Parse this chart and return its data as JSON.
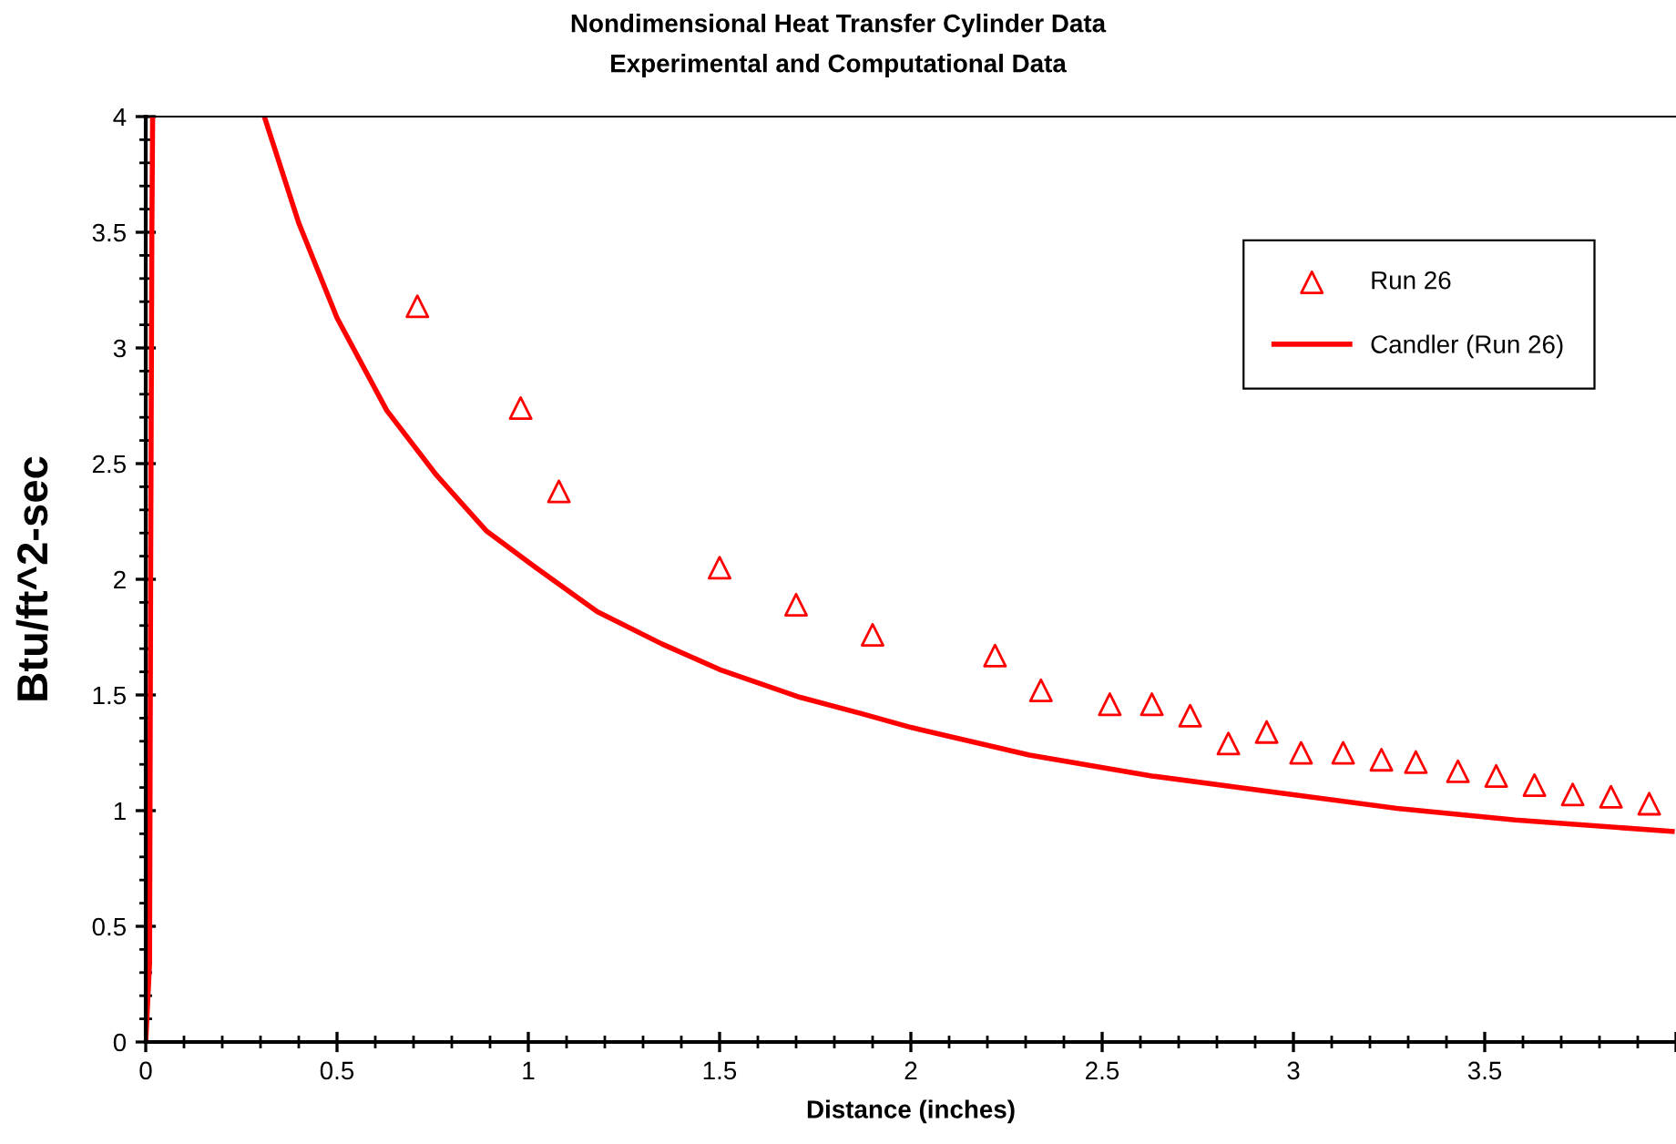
{
  "chart_data": {
    "type": "scatter",
    "title": "Nondimensional Heat Transfer Cylinder Data",
    "subtitle": "Experimental and Computational Data",
    "xlabel": "Distance (inches)",
    "ylabel": "Btu/ft^2-sec",
    "xlim": [
      0,
      4
    ],
    "ylim": [
      0,
      4
    ],
    "xticks": [
      0,
      0.5,
      1,
      1.5,
      2,
      2.5,
      3,
      3.5,
      {
        "value": 4,
        "label": null
      }
    ],
    "yticks": [
      0,
      0.5,
      1,
      1.5,
      2,
      2.5,
      3,
      3.5,
      4
    ],
    "grid": false,
    "legend": "top right",
    "series": [
      {
        "name": "Run 26",
        "marker": "triangle",
        "color": "#ff0000",
        "x": [
          0.71,
          0.98,
          1.08,
          1.5,
          1.7,
          1.9,
          2.22,
          2.34,
          2.52,
          2.63,
          2.73,
          2.83,
          2.93,
          3.02,
          3.13,
          3.23,
          3.32,
          3.43,
          3.53,
          3.63,
          3.73,
          3.83,
          3.93
        ],
        "values": [
          3.18,
          2.74,
          2.38,
          2.05,
          1.89,
          1.76,
          1.67,
          1.52,
          1.46,
          1.46,
          1.41,
          1.29,
          1.34,
          1.25,
          1.25,
          1.22,
          1.21,
          1.17,
          1.15,
          1.11,
          1.07,
          1.06,
          1.03
        ]
      },
      {
        "name": "Candler (Run 26)",
        "type": "line",
        "marker": "none",
        "line_style": "solid",
        "color": "#ff0000",
        "x": [
          0.0,
          0.01,
          0.013,
          0.016,
          0.018,
          0.1,
          0.31,
          0.4,
          0.5,
          0.63,
          0.76,
          0.89,
          1.02,
          1.18,
          1.35,
          1.5,
          1.71,
          1.87,
          2.0,
          2.31,
          2.63,
          2.95,
          3.27,
          3.58,
          3.99
        ],
        "values": [
          0.0,
          0.34,
          2.1,
          3.5,
          4.0,
          null,
          4.0,
          3.54,
          3.13,
          2.73,
          2.45,
          2.21,
          2.05,
          1.86,
          1.72,
          1.61,
          1.49,
          1.42,
          1.36,
          1.24,
          1.15,
          1.08,
          1.01,
          0.96,
          0.91
        ]
      }
    ]
  }
}
